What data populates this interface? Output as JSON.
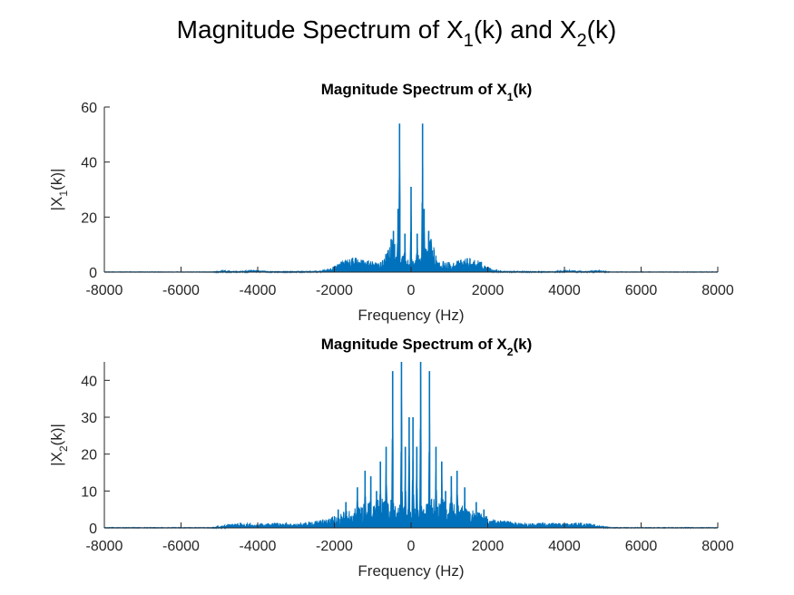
{
  "figure": {
    "suptitle": {
      "main": "Magnitude Spectrum of X",
      "sub1": "1",
      "mid": "(k) and X",
      "sub2": "2",
      "end": "(k)"
    }
  },
  "line_color": "#0072BD",
  "axis_color": "#262626",
  "chart_data": [
    {
      "type": "line",
      "title": {
        "prefix": "Magnitude Spectrum of X",
        "sub": "1",
        "suffix": "(k)"
      },
      "xlabel": "Frequency (Hz)",
      "ylabel": {
        "prefix": "|X",
        "sub": "1",
        "suffix": "(k)|"
      },
      "xlim": [
        -8000,
        8000
      ],
      "ylim": [
        0,
        60
      ],
      "xticks": [
        -8000,
        -6000,
        -4000,
        -2000,
        0,
        2000,
        4000,
        6000,
        8000
      ],
      "yticks": [
        0,
        20,
        40,
        60
      ],
      "grid": false,
      "peaks": [
        {
          "x": -300,
          "y": 54
        },
        {
          "x": 300,
          "y": 54
        },
        {
          "x": 0,
          "y": 31
        },
        {
          "x": -340,
          "y": 23
        },
        {
          "x": 340,
          "y": 23
        },
        {
          "x": -460,
          "y": 15
        },
        {
          "x": 460,
          "y": 15
        },
        {
          "x": -160,
          "y": 14
        },
        {
          "x": 160,
          "y": 14
        },
        {
          "x": -520,
          "y": 12
        },
        {
          "x": 520,
          "y": 12
        },
        {
          "x": -600,
          "y": 8
        },
        {
          "x": 600,
          "y": 8
        }
      ],
      "envelope": [
        {
          "x": -8000,
          "y": 0.1
        },
        {
          "x": -5200,
          "y": 0.1
        },
        {
          "x": -4900,
          "y": 0.5
        },
        {
          "x": -4500,
          "y": 0.2
        },
        {
          "x": -4100,
          "y": 0.6
        },
        {
          "x": -3700,
          "y": 0.2
        },
        {
          "x": -2400,
          "y": 0.3
        },
        {
          "x": -2100,
          "y": 1.2
        },
        {
          "x": -1800,
          "y": 3.5
        },
        {
          "x": -1500,
          "y": 4.5
        },
        {
          "x": -1200,
          "y": 4.0
        },
        {
          "x": -900,
          "y": 3.0
        },
        {
          "x": -700,
          "y": 5.0
        },
        {
          "x": -500,
          "y": 10.0
        },
        {
          "x": -100,
          "y": 4.0
        },
        {
          "x": 0,
          "y": 3.0
        },
        {
          "x": 100,
          "y": 4.0
        },
        {
          "x": 500,
          "y": 10.0
        },
        {
          "x": 700,
          "y": 5.0
        },
        {
          "x": 900,
          "y": 3.0
        },
        {
          "x": 1200,
          "y": 3.5
        },
        {
          "x": 1500,
          "y": 4.5
        },
        {
          "x": 1800,
          "y": 3.5
        },
        {
          "x": 2100,
          "y": 1.0
        },
        {
          "x": 2400,
          "y": 0.3
        },
        {
          "x": 3700,
          "y": 0.2
        },
        {
          "x": 4100,
          "y": 0.6
        },
        {
          "x": 4500,
          "y": 0.2
        },
        {
          "x": 4900,
          "y": 0.5
        },
        {
          "x": 5200,
          "y": 0.1
        },
        {
          "x": 8000,
          "y": 0.1
        }
      ]
    },
    {
      "type": "line",
      "title": {
        "prefix": "Magnitude Spectrum of X",
        "sub": "2",
        "suffix": "(k)"
      },
      "xlabel": "Frequency (Hz)",
      "ylabel": {
        "prefix": "|X",
        "sub": "2",
        "suffix": "(k)|"
      },
      "xlim": [
        -8000,
        8000
      ],
      "ylim": [
        0,
        45
      ],
      "xticks": [
        -8000,
        -6000,
        -4000,
        -2000,
        0,
        2000,
        4000,
        6000,
        8000
      ],
      "yticks": [
        0,
        10,
        20,
        30,
        40
      ],
      "grid": false,
      "peaks": [
        {
          "x": -250,
          "y": 45
        },
        {
          "x": 250,
          "y": 45
        },
        {
          "x": -480,
          "y": 42.5
        },
        {
          "x": 480,
          "y": 42.5
        },
        {
          "x": -50,
          "y": 30
        },
        {
          "x": 50,
          "y": 30
        },
        {
          "x": -150,
          "y": 22
        },
        {
          "x": 150,
          "y": 22
        },
        {
          "x": -650,
          "y": 22
        },
        {
          "x": 650,
          "y": 22
        },
        {
          "x": -800,
          "y": 18
        },
        {
          "x": 800,
          "y": 18
        },
        {
          "x": -1200,
          "y": 15.5
        },
        {
          "x": 1200,
          "y": 15.5
        },
        {
          "x": -1050,
          "y": 14
        },
        {
          "x": 1050,
          "y": 14
        },
        {
          "x": -1400,
          "y": 11
        },
        {
          "x": 1400,
          "y": 11
        },
        {
          "x": -900,
          "y": 10
        },
        {
          "x": 900,
          "y": 10
        },
        {
          "x": -1700,
          "y": 7
        },
        {
          "x": 1700,
          "y": 7
        },
        {
          "x": -1900,
          "y": 5
        },
        {
          "x": 1900,
          "y": 5
        }
      ],
      "envelope": [
        {
          "x": -8000,
          "y": 0.1
        },
        {
          "x": -5200,
          "y": 0.1
        },
        {
          "x": -5000,
          "y": 0.4
        },
        {
          "x": -4500,
          "y": 1.2
        },
        {
          "x": -4000,
          "y": 1.0
        },
        {
          "x": -3500,
          "y": 1.2
        },
        {
          "x": -3000,
          "y": 1.0
        },
        {
          "x": -2600,
          "y": 1.5
        },
        {
          "x": -2200,
          "y": 2.0
        },
        {
          "x": -1800,
          "y": 3.5
        },
        {
          "x": -1400,
          "y": 5.0
        },
        {
          "x": -1000,
          "y": 6.0
        },
        {
          "x": -700,
          "y": 7.0
        },
        {
          "x": -400,
          "y": 6.0
        },
        {
          "x": 0,
          "y": 4.0
        },
        {
          "x": 400,
          "y": 6.0
        },
        {
          "x": 700,
          "y": 7.0
        },
        {
          "x": 1000,
          "y": 6.0
        },
        {
          "x": 1400,
          "y": 5.0
        },
        {
          "x": 1800,
          "y": 3.5
        },
        {
          "x": 2200,
          "y": 2.0
        },
        {
          "x": 2600,
          "y": 1.5
        },
        {
          "x": 3000,
          "y": 1.0
        },
        {
          "x": 3500,
          "y": 1.2
        },
        {
          "x": 4000,
          "y": 1.0
        },
        {
          "x": 4500,
          "y": 1.2
        },
        {
          "x": 5000,
          "y": 0.4
        },
        {
          "x": 5200,
          "y": 0.1
        },
        {
          "x": 8000,
          "y": 0.1
        }
      ]
    }
  ]
}
